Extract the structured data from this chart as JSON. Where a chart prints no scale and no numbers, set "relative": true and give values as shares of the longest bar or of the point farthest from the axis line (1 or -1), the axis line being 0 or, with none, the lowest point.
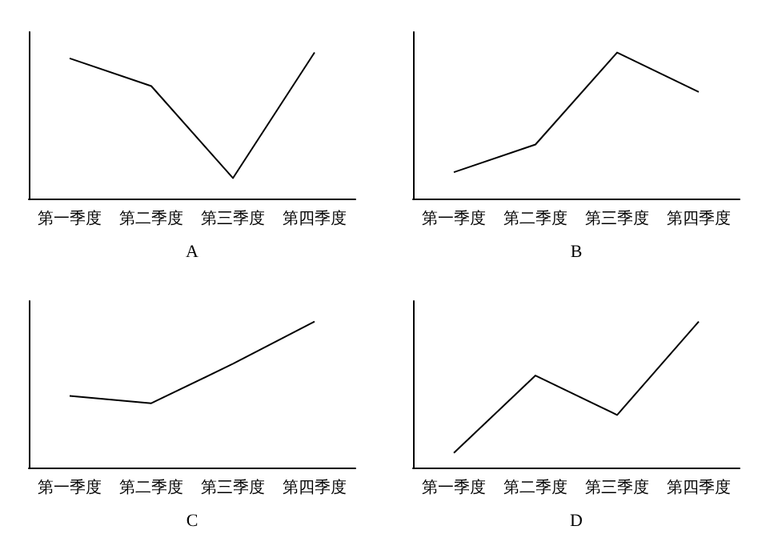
{
  "chart_data": [
    {
      "type": "line",
      "xlabel": "A",
      "categories": [
        "第一季度",
        "第二季度",
        "第三季度",
        "第四季度"
      ],
      "relative": true,
      "series": [
        {
          "color": "#000000",
          "values": [
            0.96,
            0.77,
            0.14,
            1
          ]
        }
      ],
      "grid": false,
      "marker": "none",
      "tick_labels": "x"
    },
    {
      "type": "line",
      "xlabel": "B",
      "categories": [
        "第一季度",
        "第二季度",
        "第三季度",
        "第四季度"
      ],
      "relative": true,
      "series": [
        {
          "color": "#000000",
          "values": [
            0.18,
            0.37,
            1,
            0.73
          ]
        }
      ],
      "grid": false,
      "marker": "none",
      "tick_labels": "x"
    },
    {
      "type": "line",
      "xlabel": "C",
      "categories": [
        "第一季度",
        "第二季度",
        "第三季度",
        "第四季度"
      ],
      "relative": true,
      "series": [
        {
          "color": "#000000",
          "values": [
            0.49,
            0.44,
            0.71,
            1
          ]
        }
      ],
      "grid": false,
      "marker": "none",
      "tick_labels": "x"
    },
    {
      "type": "line",
      "xlabel": "D",
      "categories": [
        "第一季度",
        "第二季度",
        "第三季度",
        "第四季度"
      ],
      "relative": true,
      "series": [
        {
          "color": "#000000",
          "values": [
            0.1,
            0.63,
            0.36,
            1
          ]
        }
      ],
      "grid": false,
      "marker": "none",
      "tick_labels": "x"
    }
  ]
}
